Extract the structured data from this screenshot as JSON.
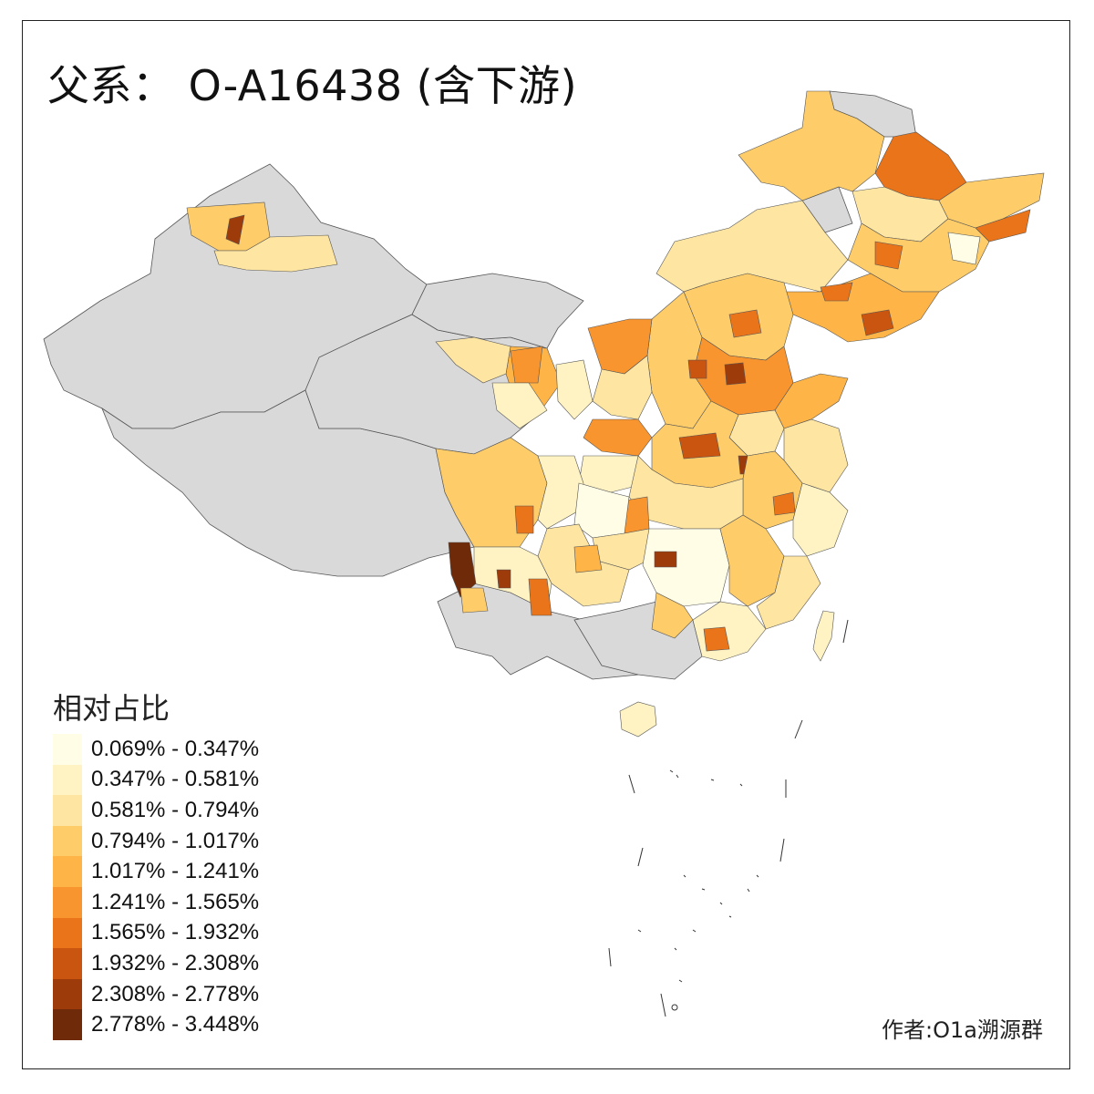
{
  "title": "父系： O-A16438 (含下游)",
  "legend": {
    "title": "相对占比",
    "items": [
      {
        "label": "0.069% - 0.347%",
        "color": "#fffde6"
      },
      {
        "label": "0.347% - 0.581%",
        "color": "#fff3c4"
      },
      {
        "label": "0.581% - 0.794%",
        "color": "#fee5a2"
      },
      {
        "label": "0.794% - 1.017%",
        "color": "#fecd6a"
      },
      {
        "label": "1.017% - 1.241%",
        "color": "#feb446"
      },
      {
        "label": "1.241% - 1.565%",
        "color": "#f9952e"
      },
      {
        "label": "1.565% - 1.932%",
        "color": "#e9741a"
      },
      {
        "label": "1.932% - 2.308%",
        "color": "#c95510"
      },
      {
        "label": "2.308% - 2.778%",
        "color": "#9d3b0b"
      },
      {
        "label": "2.778% - 3.448%",
        "color": "#6e2a09"
      }
    ]
  },
  "nodata_color": "#d9d9d9",
  "border_color": "#555555",
  "credit": "作者:O1a溯源群"
}
